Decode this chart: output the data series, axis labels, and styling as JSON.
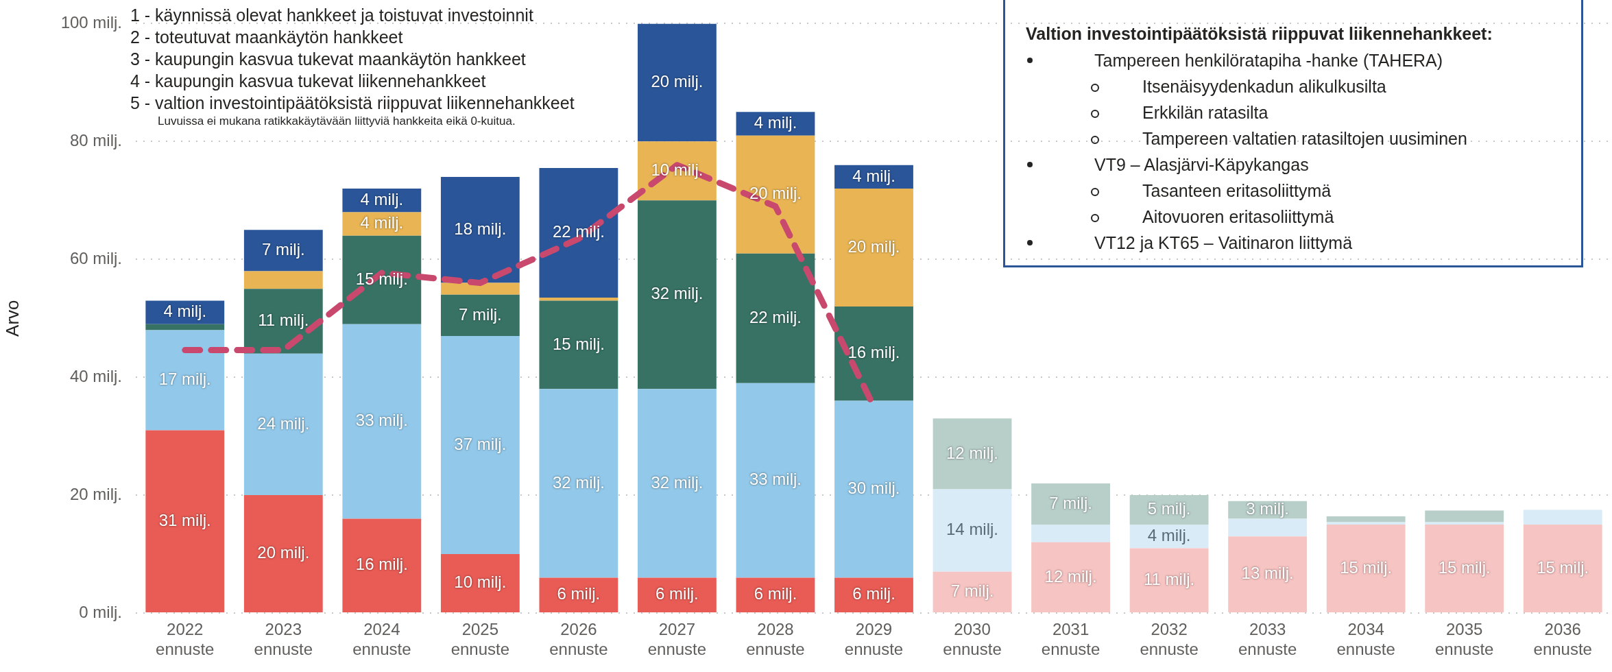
{
  "chart_data": {
    "type": "bar",
    "stacked": true,
    "ylabel": "Arvo",
    "categories": [
      "2022 ennuste",
      "2023 ennuste",
      "2024 ennuste",
      "2025 ennuste",
      "2026 ennuste",
      "2027 ennuste",
      "2028 ennuste",
      "2029 ennuste",
      "2030 ennuste",
      "2031 ennuste",
      "2032 ennuste",
      "2033 ennuste",
      "2034 ennuste",
      "2035 ennuste",
      "2036 ennuste"
    ],
    "series": [
      {
        "colors": [
          "#e85c55",
          "#e85c55",
          "#e85c55",
          "#e85c55",
          "#e85c55",
          "#e85c55",
          "#e85c55",
          "#e85c55",
          "#f6c4c2",
          "#f6c4c2",
          "#f6c4c2",
          "#f6c4c2",
          "#f6c4c2",
          "#f6c4c2",
          "#f6c4c2"
        ],
        "values": [
          31,
          20,
          16,
          10,
          6,
          6,
          6,
          6,
          7,
          12,
          11,
          13,
          15,
          15,
          15
        ],
        "value_labels": [
          "31 milj.",
          "20 milj.",
          "16 milj.",
          "10 milj.",
          "6 milj.",
          "6 milj.",
          "6 milj.",
          "6 milj.",
          "7 milj.",
          "12 milj.",
          "11 milj.",
          "13 milj.",
          "15 milj.",
          "15 milj.",
          "15 milj."
        ]
      },
      {
        "colors": [
          "#92c8e9",
          "#92c8e9",
          "#92c8e9",
          "#92c8e9",
          "#92c8e9",
          "#92c8e9",
          "#92c8e9",
          "#92c8e9",
          "#d9ebf6",
          "#d9ebf6",
          "#d9ebf6",
          "#d9ebf6",
          "#d9ebf6",
          "#d9ebf6",
          "#d9ebf6"
        ],
        "values": [
          17,
          24,
          33,
          37,
          32,
          32,
          33,
          30,
          14,
          3,
          4,
          3,
          0.4,
          0.4,
          2.5
        ],
        "value_labels": [
          "17 milj.",
          "24 milj.",
          "33 milj.",
          "37 milj.",
          "32 milj.",
          "32 milj.",
          "33 milj.",
          "30 milj.",
          "14 milj.",
          null,
          "4 milj.",
          null,
          null,
          null,
          null
        ]
      },
      {
        "colors": [
          "#387265",
          "#387265",
          "#387265",
          "#387265",
          "#387265",
          "#387265",
          "#387265",
          "#387265",
          "#b8cec8",
          "#b8cec8",
          "#b8cec8",
          "#b8cec8",
          "#b8cec8",
          "#b8cec8",
          "#b8cec8"
        ],
        "values": [
          1,
          11,
          15,
          7,
          15,
          32,
          22,
          16,
          12,
          7,
          5,
          3,
          1,
          2,
          null
        ],
        "value_labels": [
          null,
          "11 milj.",
          "15 milj.",
          "7 milj.",
          "15 milj.",
          "32 milj.",
          "22 milj.",
          "16 milj.",
          "12 milj.",
          "7 milj.",
          "5 milj.",
          "3 milj.",
          null,
          null,
          null
        ]
      },
      {
        "color": "#e8b454",
        "values": [
          null,
          3,
          4,
          2,
          0.5,
          10,
          20,
          20,
          null,
          null,
          null,
          null,
          null,
          null,
          null
        ],
        "value_labels": [
          null,
          null,
          "4 milj.",
          null,
          null,
          "10 milj.",
          "20 milj.",
          "20 milj.",
          null,
          null,
          null,
          null,
          null,
          null,
          null
        ]
      },
      {
        "color": "#2a5598",
        "values": [
          4,
          7,
          4,
          18,
          22,
          20,
          4,
          4,
          null,
          null,
          null,
          null,
          null,
          null,
          null
        ],
        "value_labels": [
          "4 milj.",
          "7 milj.",
          "4 milj.",
          "18 milj.",
          "22 milj.",
          "20 milj.",
          "4 milj.",
          "4 milj.",
          null,
          null,
          null,
          null,
          null,
          null,
          null
        ]
      },
      {
        "type": "line",
        "color": "#c9496e",
        "line_style": "dashed",
        "marker": "none",
        "values": [
          44.6,
          44.6,
          57.7,
          56,
          63.5,
          76,
          69,
          35,
          null,
          null,
          null,
          null,
          null,
          null,
          null
        ]
      }
    ],
    "ylim": [
      0,
      100
    ],
    "yticks": [
      {
        "value": 0,
        "label": "0 milj."
      },
      {
        "value": 20,
        "label": "20 milj."
      },
      {
        "value": 40,
        "label": "40 milj."
      },
      {
        "value": 60,
        "label": "60 milj."
      },
      {
        "value": 80,
        "label": "80 milj."
      },
      {
        "value": 100,
        "label": "100 milj."
      }
    ],
    "grid": "y",
    "legend": false,
    "annotations": [
      "1 - käynnissä olevat hankkeet ja toistuvat investoinnit",
      "2 - toteutuvat maankäytön hankkeet",
      "3 - kaupungin kasvua tukevat maankäytön hankkeet",
      "4 - kaupungin kasvua tukevat liikennehankkeet",
      "5 - valtion investointipäätöksistä riippuvat liikennehankkeet",
      "Luvuissa ei mukana ratikkakäytävään liittyviä hankkeita eikä 0-kuitua.",
      "Valtion investointipäätöksistä riippuvat liikennehankkeet:",
      "Tampereen henkilöratapiha -hanke (TAHERA)",
      "Itsenäisyydenkadun alikulkusilta",
      "Erkkilän ratasilta",
      "Tampereen valtatien ratasiltojen uusiminen",
      "VT9 – Alasjärvi-Käpykangas",
      "Tasanteen eritasoliittymä",
      "Aitovuoren eritasoliittymä",
      "VT12 ja KT65 – Vaitinaron liittymä"
    ]
  }
}
